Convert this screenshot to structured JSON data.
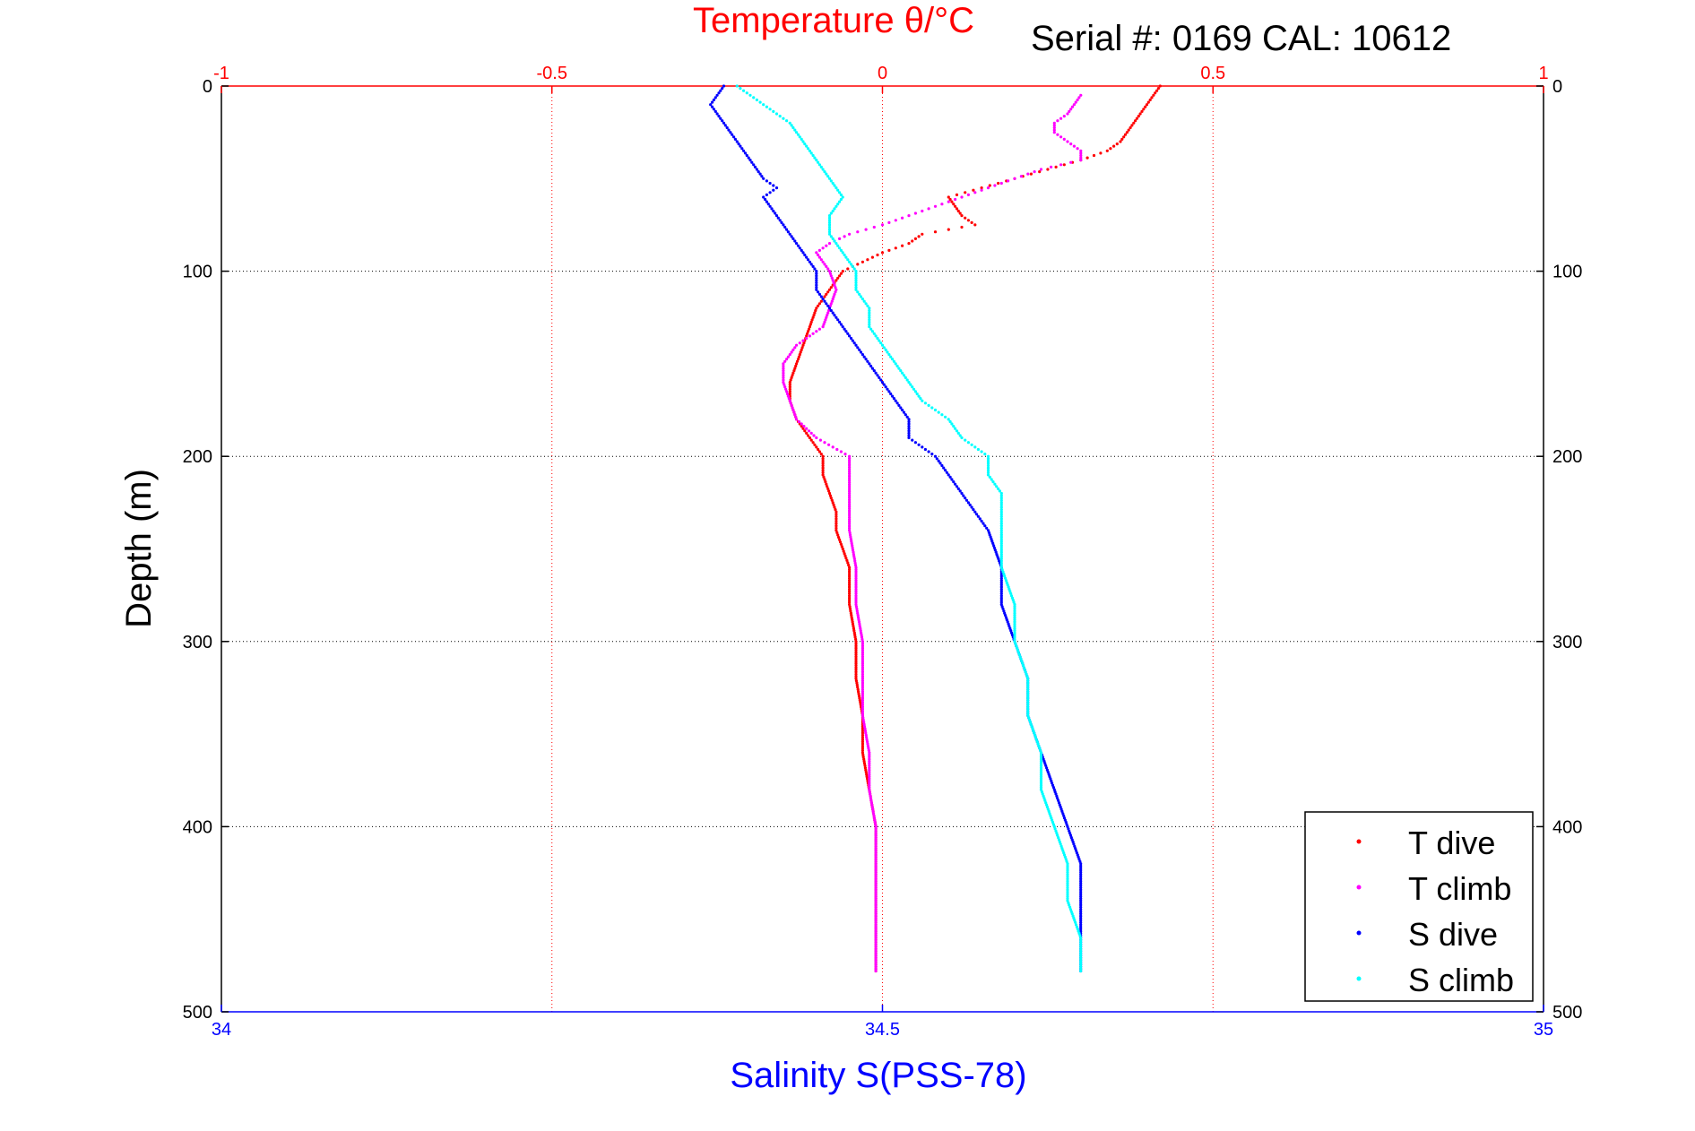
{
  "chart_data": {
    "type": "scatter",
    "title_top": "Temperature θ/°C",
    "serial_text": "Serial #: 0169 CAL: 10612",
    "ylabel": "Depth (m)",
    "xlabel_bottom": "Salinity S(PSS-78)",
    "y_axis": {
      "range": [
        0,
        500
      ],
      "reversed": true,
      "ticks": [
        0,
        100,
        200,
        300,
        400,
        500
      ]
    },
    "temperature_axis": {
      "range": [
        -1,
        1
      ],
      "ticks": [
        -1,
        -0.5,
        0,
        0.5,
        1
      ],
      "tick_labels": [
        "-1",
        "-0.5",
        "0",
        "0.5",
        "1"
      ],
      "color": "#ff0000"
    },
    "salinity_axis": {
      "range": [
        34,
        35
      ],
      "ticks": [
        34,
        34.5,
        35
      ],
      "tick_labels": [
        "34",
        "34.5",
        "35"
      ],
      "color": "#0000ff"
    },
    "grid": true,
    "legend": {
      "placement": "bottom-right",
      "entries": [
        "T dive",
        "T climb",
        "S dive",
        "S climb"
      ]
    },
    "series": [
      {
        "name": "T dive",
        "axis": "temperature",
        "color": "#ff0000",
        "points": [
          [
            0,
            0.42
          ],
          [
            10,
            0.4
          ],
          [
            20,
            0.38
          ],
          [
            30,
            0.36
          ],
          [
            35,
            0.34
          ],
          [
            40,
            0.3
          ],
          [
            45,
            0.25
          ],
          [
            50,
            0.2
          ],
          [
            55,
            0.15
          ],
          [
            60,
            0.1
          ],
          [
            65,
            0.11
          ],
          [
            70,
            0.12
          ],
          [
            75,
            0.14
          ],
          [
            80,
            0.06
          ],
          [
            85,
            0.04
          ],
          [
            90,
            0.0
          ],
          [
            95,
            -0.03
          ],
          [
            100,
            -0.06
          ],
          [
            110,
            -0.08
          ],
          [
            120,
            -0.1
          ],
          [
            130,
            -0.11
          ],
          [
            140,
            -0.12
          ],
          [
            150,
            -0.13
          ],
          [
            160,
            -0.14
          ],
          [
            170,
            -0.14
          ],
          [
            180,
            -0.13
          ],
          [
            190,
            -0.11
          ],
          [
            200,
            -0.09
          ],
          [
            210,
            -0.09
          ],
          [
            220,
            -0.08
          ],
          [
            230,
            -0.07
          ],
          [
            240,
            -0.07
          ],
          [
            250,
            -0.06
          ],
          [
            260,
            -0.05
          ],
          [
            280,
            -0.05
          ],
          [
            300,
            -0.04
          ],
          [
            320,
            -0.04
          ],
          [
            340,
            -0.03
          ],
          [
            360,
            -0.03
          ],
          [
            380,
            -0.02
          ],
          [
            400,
            -0.01
          ],
          [
            420,
            -0.01
          ],
          [
            440,
            -0.01
          ],
          [
            460,
            -0.01
          ],
          [
            478,
            -0.01
          ]
        ]
      },
      {
        "name": "T climb",
        "axis": "temperature",
        "color": "#ff00ff",
        "points": [
          [
            5,
            0.3
          ],
          [
            10,
            0.29
          ],
          [
            15,
            0.28
          ],
          [
            20,
            0.26
          ],
          [
            25,
            0.26
          ],
          [
            30,
            0.28
          ],
          [
            35,
            0.3
          ],
          [
            40,
            0.3
          ],
          [
            45,
            0.24
          ],
          [
            50,
            0.2
          ],
          [
            55,
            0.16
          ],
          [
            60,
            0.12
          ],
          [
            65,
            0.08
          ],
          [
            70,
            0.04
          ],
          [
            75,
            0.0
          ],
          [
            80,
            -0.05
          ],
          [
            85,
            -0.08
          ],
          [
            90,
            -0.1
          ],
          [
            95,
            -0.09
          ],
          [
            100,
            -0.08
          ],
          [
            110,
            -0.07
          ],
          [
            120,
            -0.08
          ],
          [
            130,
            -0.09
          ],
          [
            140,
            -0.13
          ],
          [
            150,
            -0.15
          ],
          [
            160,
            -0.15
          ],
          [
            170,
            -0.14
          ],
          [
            180,
            -0.13
          ],
          [
            190,
            -0.1
          ],
          [
            200,
            -0.05
          ],
          [
            220,
            -0.05
          ],
          [
            240,
            -0.05
          ],
          [
            260,
            -0.04
          ],
          [
            280,
            -0.04
          ],
          [
            300,
            -0.03
          ],
          [
            320,
            -0.03
          ],
          [
            340,
            -0.03
          ],
          [
            360,
            -0.02
          ],
          [
            380,
            -0.02
          ],
          [
            400,
            -0.01
          ],
          [
            420,
            -0.01
          ],
          [
            440,
            -0.01
          ],
          [
            460,
            -0.01
          ],
          [
            478,
            -0.01
          ]
        ]
      },
      {
        "name": "S dive",
        "axis": "salinity",
        "color": "#0000ff",
        "points": [
          [
            0,
            34.38
          ],
          [
            10,
            34.37
          ],
          [
            20,
            34.38
          ],
          [
            30,
            34.39
          ],
          [
            40,
            34.4
          ],
          [
            50,
            34.41
          ],
          [
            55,
            34.42
          ],
          [
            60,
            34.41
          ],
          [
            70,
            34.42
          ],
          [
            80,
            34.43
          ],
          [
            90,
            34.44
          ],
          [
            100,
            34.45
          ],
          [
            110,
            34.45
          ],
          [
            120,
            34.46
          ],
          [
            130,
            34.47
          ],
          [
            140,
            34.48
          ],
          [
            150,
            34.49
          ],
          [
            160,
            34.5
          ],
          [
            170,
            34.51
          ],
          [
            180,
            34.52
          ],
          [
            190,
            34.52
          ],
          [
            200,
            34.54
          ],
          [
            210,
            34.55
          ],
          [
            220,
            34.56
          ],
          [
            230,
            34.57
          ],
          [
            240,
            34.58
          ],
          [
            260,
            34.59
          ],
          [
            280,
            34.59
          ],
          [
            300,
            34.6
          ],
          [
            320,
            34.61
          ],
          [
            340,
            34.61
          ],
          [
            360,
            34.62
          ],
          [
            380,
            34.63
          ],
          [
            400,
            34.64
          ],
          [
            420,
            34.65
          ],
          [
            440,
            34.65
          ],
          [
            460,
            34.65
          ],
          [
            478,
            34.65
          ]
        ]
      },
      {
        "name": "S climb",
        "axis": "salinity",
        "color": "#00ffff",
        "points": [
          [
            0,
            34.39
          ],
          [
            10,
            34.41
          ],
          [
            20,
            34.43
          ],
          [
            30,
            34.44
          ],
          [
            40,
            34.45
          ],
          [
            50,
            34.46
          ],
          [
            60,
            34.47
          ],
          [
            70,
            34.46
          ],
          [
            80,
            34.46
          ],
          [
            90,
            34.47
          ],
          [
            100,
            34.48
          ],
          [
            110,
            34.48
          ],
          [
            120,
            34.49
          ],
          [
            130,
            34.49
          ],
          [
            140,
            34.5
          ],
          [
            150,
            34.51
          ],
          [
            160,
            34.52
          ],
          [
            170,
            34.53
          ],
          [
            180,
            34.55
          ],
          [
            190,
            34.56
          ],
          [
            200,
            34.58
          ],
          [
            210,
            34.58
          ],
          [
            220,
            34.59
          ],
          [
            230,
            34.59
          ],
          [
            240,
            34.59
          ],
          [
            260,
            34.59
          ],
          [
            280,
            34.6
          ],
          [
            300,
            34.6
          ],
          [
            320,
            34.61
          ],
          [
            340,
            34.61
          ],
          [
            360,
            34.62
          ],
          [
            380,
            34.62
          ],
          [
            400,
            34.63
          ],
          [
            420,
            34.64
          ],
          [
            440,
            34.64
          ],
          [
            460,
            34.65
          ],
          [
            478,
            34.65
          ]
        ]
      }
    ]
  }
}
